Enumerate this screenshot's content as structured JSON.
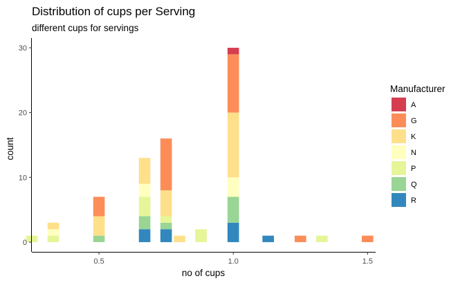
{
  "chart_data": {
    "type": "bar",
    "title": "Distribution of cups per Serving",
    "subtitle": "different cups for servings",
    "xlabel": "no of cups",
    "ylabel": "count",
    "xlim": [
      0.25,
      1.53
    ],
    "ylim": [
      -1.5,
      31.5
    ],
    "x_ticks": [
      0.5,
      1.0,
      1.5
    ],
    "x_tick_labels": [
      "0.5",
      "1.0",
      "1.5"
    ],
    "y_ticks": [
      0,
      10,
      20,
      30
    ],
    "y_tick_labels": [
      "0",
      "10",
      "20",
      "30"
    ],
    "bin_width": 0.0428,
    "grid": false,
    "legend": {
      "title": "Manufacturer",
      "placement": "right",
      "entries": [
        {
          "key": "A",
          "label": "A",
          "color": "#D53E4F"
        },
        {
          "key": "G",
          "label": "G",
          "color": "#FC8D59"
        },
        {
          "key": "K",
          "label": "K",
          "color": "#FEE08B"
        },
        {
          "key": "N",
          "label": "N",
          "color": "#FFFFBF"
        },
        {
          "key": "P",
          "label": "P",
          "color": "#E6F598"
        },
        {
          "key": "Q",
          "label": "Q",
          "color": "#99D594"
        },
        {
          "key": "R",
          "label": "R",
          "color": "#3288BD"
        }
      ]
    },
    "stack_order_bottom_to_top": [
      "R",
      "Q",
      "P",
      "N",
      "K",
      "G",
      "A"
    ],
    "bins": [
      {
        "x": 0.25,
        "counts": {
          "P": 1
        }
      },
      {
        "x": 0.33,
        "counts": {
          "P": 1,
          "N": 1,
          "K": 1
        }
      },
      {
        "x": 0.5,
        "counts": {
          "Q": 1,
          "K": 3,
          "G": 3
        }
      },
      {
        "x": 0.67,
        "counts": {
          "R": 2,
          "Q": 2,
          "P": 3,
          "N": 2,
          "K": 4
        }
      },
      {
        "x": 0.75,
        "counts": {
          "R": 2,
          "Q": 1,
          "P": 1,
          "K": 4,
          "G": 8
        }
      },
      {
        "x": 0.8,
        "counts": {
          "K": 1
        }
      },
      {
        "x": 0.88,
        "counts": {
          "P": 2
        }
      },
      {
        "x": 1.0,
        "counts": {
          "R": 3,
          "Q": 4,
          "N": 3,
          "K": 10,
          "G": 9,
          "A": 1
        }
      },
      {
        "x": 1.13,
        "counts": {
          "R": 1
        }
      },
      {
        "x": 1.25,
        "counts": {
          "G": 1
        }
      },
      {
        "x": 1.33,
        "counts": {
          "P": 1
        }
      },
      {
        "x": 1.5,
        "counts": {
          "G": 1
        }
      }
    ]
  }
}
